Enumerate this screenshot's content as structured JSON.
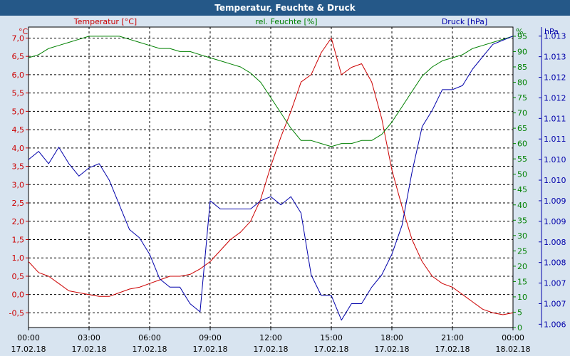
{
  "window": {
    "title": "Temperatur, Feuchte & Druck"
  },
  "legend": {
    "temperature": "Temperatur [°C]",
    "humidity": "rel. Feuchte [%]",
    "pressure": "Druck [hPa]"
  },
  "units": {
    "temperature": "°C",
    "humidity": "%",
    "pressure": "hPa"
  },
  "colors": {
    "temperature": "#cc0000",
    "humidity": "#008000",
    "pressure": "#0000aa",
    "grid": "#000000",
    "plot_bg": "#ffffff",
    "frame_bg": "#d8e4f0",
    "title_bg": "#255888"
  },
  "chart_data": {
    "type": "line",
    "title": "Temperatur, Feuchte & Druck",
    "x_ticks": [
      {
        "time": "00:00",
        "date": "17.02.18"
      },
      {
        "time": "03:00",
        "date": "17.02.18"
      },
      {
        "time": "06:00",
        "date": "17.02.18"
      },
      {
        "time": "09:00",
        "date": "17.02.18"
      },
      {
        "time": "12:00",
        "date": "17.02.18"
      },
      {
        "time": "15:00",
        "date": "17.02.18"
      },
      {
        "time": "18:00",
        "date": "17.02.18"
      },
      {
        "time": "21:00",
        "date": "17.02.18"
      },
      {
        "time": "00:00",
        "date": "18.02.18"
      }
    ],
    "x": [
      "00:00",
      "00:30",
      "01:00",
      "01:30",
      "02:00",
      "02:30",
      "03:00",
      "03:30",
      "04:00",
      "04:30",
      "05:00",
      "05:30",
      "06:00",
      "06:30",
      "07:00",
      "07:30",
      "08:00",
      "08:30",
      "09:00",
      "09:30",
      "10:00",
      "10:30",
      "11:00",
      "11:30",
      "12:00",
      "12:30",
      "13:00",
      "13:30",
      "14:00",
      "14:30",
      "15:00",
      "15:30",
      "16:00",
      "16:30",
      "17:00",
      "17:30",
      "18:00",
      "18:30",
      "19:00",
      "19:30",
      "20:00",
      "20:30",
      "21:00",
      "21:30",
      "22:00",
      "22:30",
      "23:00",
      "23:30",
      "00:00"
    ],
    "axes": {
      "temperature": {
        "ylim": [
          -0.9,
          7.3
        ],
        "ticks": [
          "-0,5",
          "0,0",
          "0,5",
          "1,0",
          "1,5",
          "2,0",
          "2,5",
          "3,0",
          "3,5",
          "4,0",
          "4,5",
          "5,0",
          "5,5",
          "6,0",
          "6,5",
          "7,0"
        ],
        "tick_values": [
          -0.5,
          0,
          0.5,
          1,
          1.5,
          2,
          2.5,
          3,
          3.5,
          4,
          4.5,
          5,
          5.5,
          6,
          6.5,
          7
        ]
      },
      "humidity": {
        "ylim": [
          0,
          98
        ],
        "ticks": [
          "0",
          "5",
          "10",
          "15",
          "20",
          "25",
          "30",
          "35",
          "40",
          "45",
          "50",
          "55",
          "60",
          "65",
          "70",
          "75",
          "80",
          "85",
          "90",
          "95"
        ],
        "tick_values": [
          0,
          5,
          10,
          15,
          20,
          25,
          30,
          35,
          40,
          45,
          50,
          55,
          60,
          65,
          70,
          75,
          80,
          85,
          90,
          95
        ]
      },
      "pressure": {
        "ylim": [
          1005.92,
          1013.22
        ],
        "ticks": [
          "1.006",
          "1.007",
          "1.007",
          "1.008",
          "1.008",
          "1.009",
          "1.009",
          "1.010",
          "1.010",
          "1.011",
          "1.011",
          "1.012",
          "1.012",
          "1.013",
          "1.013"
        ],
        "tick_values": [
          1006.0,
          1006.5,
          1007.0,
          1007.5,
          1008.0,
          1008.5,
          1009.0,
          1009.5,
          1010.0,
          1010.5,
          1011.0,
          1011.5,
          1012.0,
          1012.5,
          1013.0
        ]
      }
    },
    "grid": true,
    "series": [
      {
        "name": "Temperatur [°C]",
        "axis": "temperature",
        "values": [
          0.9,
          0.6,
          0.5,
          0.3,
          0.1,
          0.05,
          0.0,
          -0.05,
          -0.05,
          0.05,
          0.15,
          0.2,
          0.3,
          0.4,
          0.5,
          0.5,
          0.55,
          0.7,
          0.9,
          1.2,
          1.5,
          1.7,
          2.0,
          2.6,
          3.5,
          4.3,
          5.0,
          5.8,
          6.0,
          6.6,
          7.0,
          6.0,
          6.2,
          6.3,
          5.8,
          4.8,
          3.4,
          2.4,
          1.5,
          0.9,
          0.5,
          0.3,
          0.2,
          0.0,
          -0.2,
          -0.4,
          -0.5,
          -0.55,
          -0.5
        ]
      },
      {
        "name": "rel. Feuchte [%]",
        "axis": "humidity",
        "values": [
          88,
          89,
          91,
          92,
          93,
          94,
          95,
          95,
          95,
          95,
          94,
          93,
          92,
          91,
          91,
          90,
          90,
          89,
          88,
          87,
          86,
          85,
          83,
          80,
          75,
          70,
          65,
          61,
          61,
          60,
          59,
          60,
          60,
          61,
          61,
          63,
          67,
          72,
          77,
          82,
          85,
          87,
          88,
          89,
          91,
          92,
          93,
          94,
          95
        ]
      },
      {
        "name": "Druck [hPa]",
        "axis": "pressure",
        "values": [
          1010.0,
          1010.2,
          1009.9,
          1010.3,
          1009.9,
          1009.6,
          1009.8,
          1009.9,
          1009.5,
          1008.9,
          1008.3,
          1008.1,
          1007.7,
          1007.1,
          1006.9,
          1006.9,
          1006.5,
          1006.3,
          1009.0,
          1008.8,
          1008.8,
          1008.8,
          1008.8,
          1009.0,
          1009.1,
          1008.9,
          1009.1,
          1008.7,
          1007.2,
          1006.7,
          1006.7,
          1006.1,
          1006.5,
          1006.5,
          1006.9,
          1007.2,
          1007.7,
          1008.4,
          1009.7,
          1010.8,
          1011.2,
          1011.7,
          1011.7,
          1011.8,
          1012.2,
          1012.5,
          1012.8,
          1012.9,
          1013.0
        ]
      }
    ]
  }
}
